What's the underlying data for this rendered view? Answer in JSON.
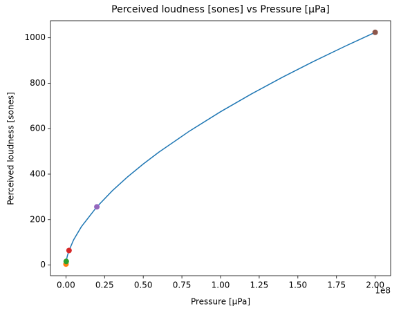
{
  "chart_data": {
    "type": "line",
    "title": "Perceived loudness [sones] vs Pressure [µPa]",
    "x_label": "Pressure [µPa]",
    "y_label": "Perceived loudness [sones]",
    "x_offset_label": "1e8",
    "x": [
      20000,
      200000,
      500000,
      1000000,
      2000000,
      5000000,
      10000000,
      20000000,
      30000000,
      40000000,
      50000000,
      60000000,
      80000000,
      100000000,
      120000000,
      140000000,
      160000000,
      180000000,
      200000000
    ],
    "values": [
      4,
      16,
      27.8,
      42.2,
      64,
      111.1,
      168.7,
      256,
      326.8,
      388.6,
      444.4,
      496.0,
      589.8,
      674.6,
      752.9,
      826.2,
      895.3,
      961.0,
      1024
    ],
    "color": "#1f77b4",
    "points": {
      "x": [
        20000,
        200000,
        2000000,
        20000000,
        200000000
      ],
      "values": [
        4,
        16,
        64,
        256,
        1024
      ],
      "colors": [
        "#ff7f0e",
        "#2ca02c",
        "#d62728",
        "#9467bd",
        "#8c564b"
      ]
    },
    "xlim": [
      -10000000,
      210000000
    ],
    "ylim": [
      -47,
      1075
    ],
    "xticks": [
      {
        "value": 0,
        "label": "0.00"
      },
      {
        "value": 25000000,
        "label": "0.25"
      },
      {
        "value": 50000000,
        "label": "0.50"
      },
      {
        "value": 75000000,
        "label": "0.75"
      },
      {
        "value": 100000000,
        "label": "1.00"
      },
      {
        "value": 125000000,
        "label": "1.25"
      },
      {
        "value": 150000000,
        "label": "1.50"
      },
      {
        "value": 175000000,
        "label": "1.75"
      },
      {
        "value": 200000000,
        "label": "2.00"
      }
    ],
    "yticks": [
      0,
      200,
      400,
      600,
      800,
      1000
    ]
  }
}
